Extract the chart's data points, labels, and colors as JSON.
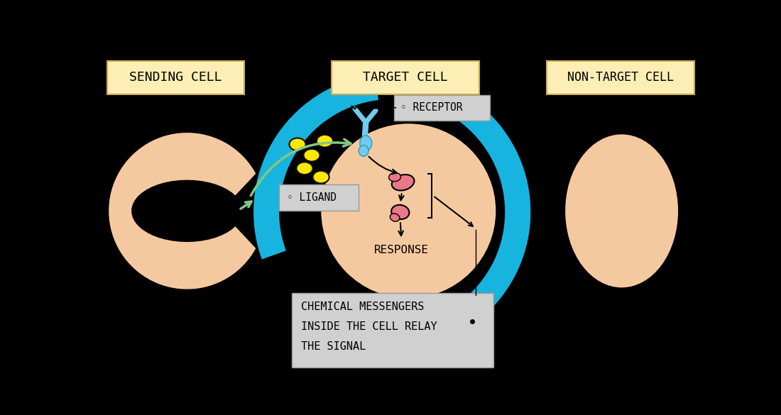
{
  "bg_color": "#000000",
  "cell_color": "#f5c9a0",
  "label_box_fill": "#fceeb5",
  "label_box_edge": "#ccaa55",
  "gray_box_fill": "#d0d0d0",
  "gray_box_edge": "#999999",
  "cyan_color": "#18b4e0",
  "green_color": "#80c880",
  "yellow_color": "#ffe800",
  "receptor_color": "#70ccee",
  "signal_color": "#e8788a",
  "sending_cell_label": "SENDING CELL",
  "target_cell_label": "TARGET CELL",
  "non_target_label": "NON-TARGET CELL",
  "receptor_label": "RECEPTOR",
  "ligand_label": "LIGAND",
  "response_label": "RESPONSE",
  "chemical_line1": "CHEMICAL MESSENGERS",
  "chemical_line2": "INSIDE THE CELL RELAY",
  "chemical_line3": "THE SIGNAL"
}
